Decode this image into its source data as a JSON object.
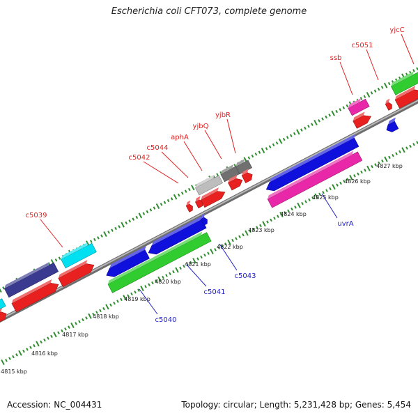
{
  "title": "Escherichia coli CFT073, complete genome",
  "footer": {
    "accession": "Accession: NC_004431",
    "stats": "Topology: circular; Length: 5,231,428 bp; Genes: 5,454"
  },
  "colors": {
    "backbone": "#8c8c8c",
    "ticks": "#2e8b2e",
    "label_forward": "#e02020",
    "label_reverse": "#2020c8"
  },
  "scale": {
    "unit": "kbp",
    "labels": [
      "4815 kbp",
      "4816 kbp",
      "4817 kbp",
      "4818 kbp",
      "4819 kbp",
      "4820 kbp",
      "4821 kbp",
      "4822 kbp",
      "4823 kbp",
      "4824 kbp",
      "4825 kbp",
      "4826 kbp",
      "4827 kbp"
    ]
  },
  "genes": [
    {
      "name": "c5039",
      "color": "#e82020",
      "strand": "forward"
    },
    {
      "name": "c5040",
      "color": "#1010dd",
      "strand": "reverse"
    },
    {
      "name": "c5041",
      "color": "#30cc30",
      "strand": "reverse"
    },
    {
      "name": "c5042",
      "color": "#e82020",
      "strand": "forward"
    },
    {
      "name": "c5043",
      "color": "#1010dd",
      "strand": "reverse"
    },
    {
      "name": "c5044",
      "color": "#e82020",
      "strand": "forward"
    },
    {
      "name": "aphA",
      "color": "#e82020",
      "strand": "forward"
    },
    {
      "name": "yjbQ",
      "color": "#e82020",
      "strand": "forward"
    },
    {
      "name": "yjbR",
      "color": "#e82020",
      "strand": "forward"
    },
    {
      "name": "uvrA",
      "color": "#1010dd",
      "strand": "reverse"
    },
    {
      "name": "ssb",
      "color": "#e82020",
      "strand": "forward"
    },
    {
      "name": "c5051",
      "color": "#e82020",
      "strand": "forward"
    },
    {
      "name": "yjcC",
      "color": "#e82020",
      "strand": "forward"
    }
  ]
}
